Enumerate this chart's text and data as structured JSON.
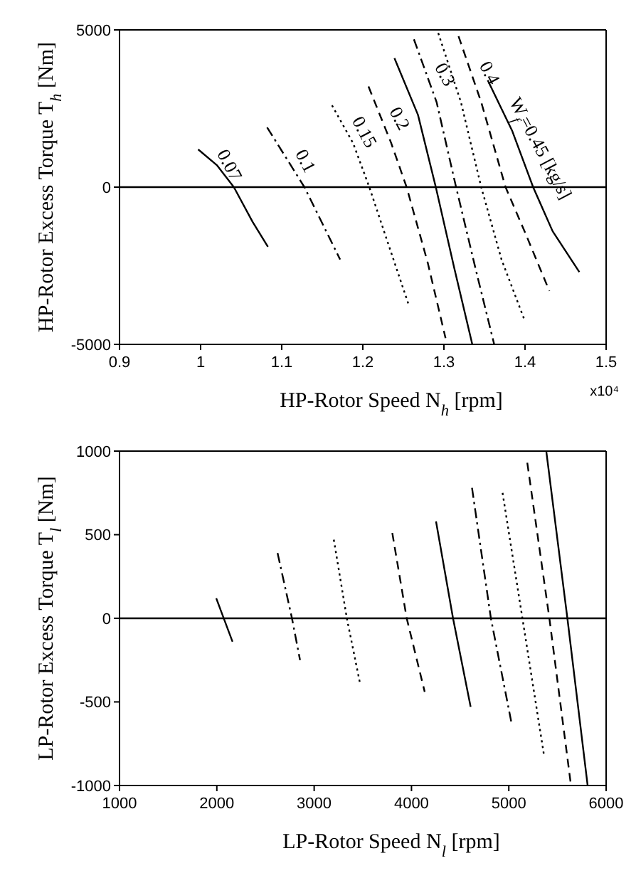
{
  "chart_data": [
    {
      "type": "line",
      "xlabel": "HP-Rotor Speed N$_{h}$ [rpm]",
      "ylabel": "HP-Rotor Excess Torque T$_{h}$ [Nm]",
      "xlim": [
        0.9,
        1.5
      ],
      "xticks": [
        0.9,
        1,
        1.1,
        1.2,
        1.3,
        1.4,
        1.5
      ],
      "ylim": [
        -5000,
        5000
      ],
      "yticks": [
        -5000,
        0,
        5000
      ],
      "grid": false,
      "legend": false,
      "marker": "none",
      "ref_lines": [
        {
          "axis": "y",
          "value": 0,
          "color": "#000000",
          "line_style": "solid"
        }
      ],
      "annotations": [
        "x10⁴"
      ],
      "series": [
        {
          "name": "0.07",
          "color": "#000000",
          "line_style": "solid",
          "x": [
            0.997,
            1.02,
            1.041,
            1.064,
            1.083
          ],
          "values": [
            1200,
            700,
            0,
            -1100,
            -1900
          ]
        },
        {
          "name": "0.1",
          "color": "#000000",
          "line_style": "dashdot",
          "x": [
            1.082,
            1.128,
            1.172
          ],
          "values": [
            1900,
            0,
            -2300
          ]
        },
        {
          "name": "0.15",
          "color": "#000000",
          "line_style": "dotted",
          "x": [
            1.162,
            1.188,
            1.208,
            1.23,
            1.256
          ],
          "values": [
            2600,
            1400,
            0,
            -1700,
            -3700
          ]
        },
        {
          "name": "0.2",
          "color": "#000000",
          "line_style": "dashed",
          "x": [
            1.207,
            1.235,
            1.254,
            1.28,
            1.302
          ],
          "values": [
            3200,
            1400,
            0,
            -2400,
            -4800
          ]
        },
        {
          "color": "#000000",
          "line_style": "solid",
          "x": [
            1.239,
            1.268,
            1.29,
            1.313,
            1.335
          ],
          "values": [
            4100,
            2300,
            0,
            -2600,
            -5000
          ]
        },
        {
          "name": "0.3",
          "color": "#000000",
          "line_style": "dashdot",
          "x": [
            1.263,
            1.291,
            1.315,
            1.34,
            1.362
          ],
          "values": [
            4700,
            2700,
            0,
            -2700,
            -5000
          ]
        },
        {
          "color": "#000000",
          "line_style": "dotted",
          "x": [
            1.293,
            1.321,
            1.346,
            1.371,
            1.399
          ],
          "values": [
            4900,
            2700,
            0,
            -2300,
            -4200
          ]
        },
        {
          "name": "0.4",
          "color": "#000000",
          "line_style": "dashed",
          "x": [
            1.318,
            1.346,
            1.376,
            1.401,
            1.43
          ],
          "values": [
            4800,
            2700,
            0,
            -1500,
            -3300
          ]
        },
        {
          "name": "W$_{f}$=0.45 [kg/s]",
          "color": "#000000",
          "line_style": "solid",
          "x": [
            1.354,
            1.384,
            1.41,
            1.434,
            1.467
          ],
          "values": [
            3400,
            1800,
            0,
            -1400,
            -2700
          ]
        }
      ]
    },
    {
      "type": "line",
      "xlabel": "LP-Rotor Speed N$_{l}$ [rpm]",
      "ylabel": "LP-Rotor Excess Torque T$_{l}$ [Nm]",
      "xlim": [
        1000,
        6000
      ],
      "xticks": [
        1000,
        2000,
        3000,
        4000,
        5000,
        6000
      ],
      "ylim": [
        -1000,
        1000
      ],
      "yticks": [
        -1000,
        -500,
        0,
        500,
        1000
      ],
      "grid": false,
      "legend": false,
      "marker": "none",
      "ref_lines": [
        {
          "axis": "y",
          "value": 0,
          "color": "#000000",
          "line_style": "solid"
        }
      ],
      "series": [
        {
          "color": "#000000",
          "line_style": "solid",
          "x": [
            1994,
            2161
          ],
          "values": [
            120,
            -140
          ]
        },
        {
          "color": "#000000",
          "line_style": "dashdot",
          "x": [
            2624,
            2772,
            2855
          ],
          "values": [
            390,
            0,
            -250
          ]
        },
        {
          "color": "#000000",
          "line_style": "dotted",
          "x": [
            3202,
            3336,
            3475
          ],
          "values": [
            470,
            0,
            -400
          ]
        },
        {
          "color": "#000000",
          "line_style": "dashed",
          "x": [
            3803,
            3951,
            4136
          ],
          "values": [
            510,
            0,
            -440
          ]
        },
        {
          "color": "#000000",
          "line_style": "solid",
          "x": [
            4252,
            4427,
            4608
          ],
          "values": [
            580,
            0,
            -530
          ]
        },
        {
          "color": "#000000",
          "line_style": "dashdot",
          "x": [
            4622,
            4816,
            5029
          ],
          "values": [
            780,
            0,
            -630
          ]
        },
        {
          "color": "#000000",
          "line_style": "dotted",
          "x": [
            4936,
            5140,
            5362
          ],
          "values": [
            750,
            0,
            -820
          ]
        },
        {
          "color": "#000000",
          "line_style": "dashed",
          "x": [
            5190,
            5417,
            5639
          ],
          "values": [
            930,
            0,
            -1000
          ]
        },
        {
          "color": "#000000",
          "line_style": "solid",
          "x": [
            5385,
            5602,
            5810
          ],
          "values": [
            1000,
            0,
            -1000
          ]
        }
      ]
    }
  ]
}
